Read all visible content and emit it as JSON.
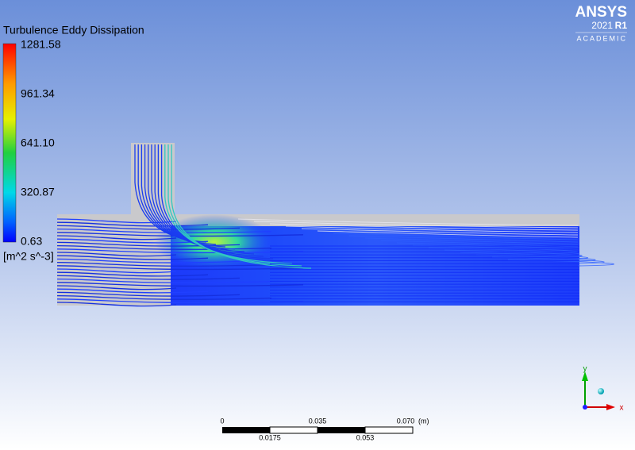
{
  "legend": {
    "title": "Turbulence Eddy Dissipation",
    "labels": [
      "1281.58",
      "961.34",
      "641.10",
      "320.87",
      "0.63"
    ],
    "unit": "[m^2 s^-3]"
  },
  "logo": {
    "brand": "ANSYS",
    "version": "2021",
    "release": "R1",
    "edition": "ACADEMIC"
  },
  "scale_bar": {
    "top_labels": [
      "0",
      "0.035",
      "0.070"
    ],
    "unit": "(m)",
    "bottom_labels": [
      "0.0175",
      "0.053"
    ]
  },
  "triad": {
    "y": "y",
    "x": "x"
  }
}
